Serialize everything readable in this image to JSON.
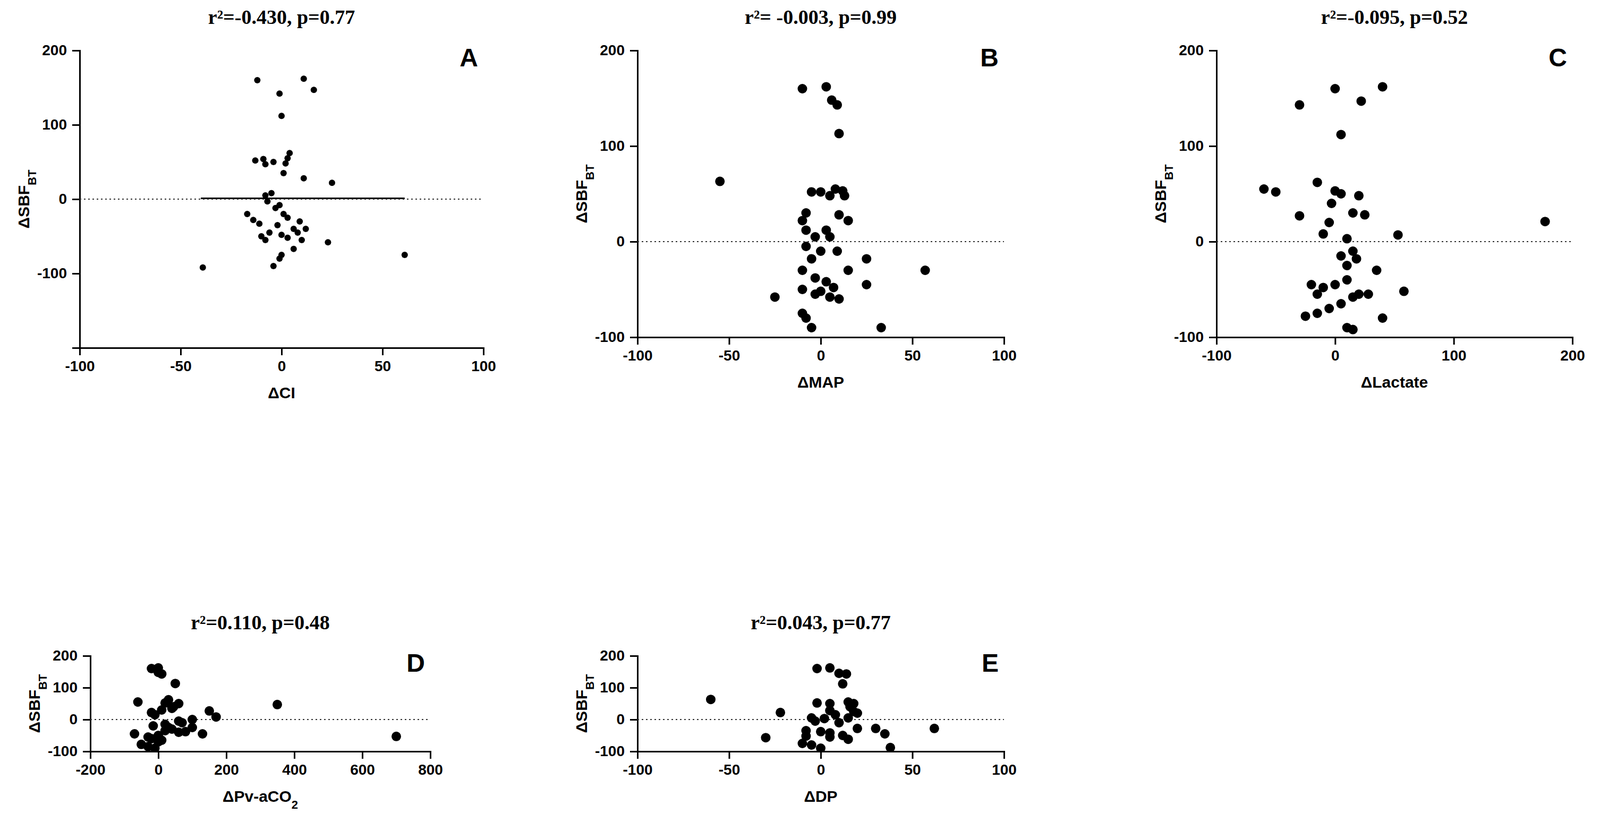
{
  "chart_data": [
    {
      "type": "scatter",
      "title": "r²=-0.430, p=0.77",
      "panel": "A",
      "xlabel": "ΔCI",
      "ylabel": "ΔSBF",
      "ylabel_sub": "BT",
      "color": "#000000",
      "marker": "circle",
      "xlim": [
        -100,
        100
      ],
      "xticks": [
        -100,
        -50,
        0,
        50,
        100
      ],
      "ylim": [
        -200,
        200
      ],
      "yticks": [
        -100,
        0,
        100,
        200
      ],
      "hline": 0,
      "fit": {
        "x": [
          -40,
          61
        ],
        "y": [
          1,
          1
        ]
      },
      "x": [
        -12,
        11,
        16,
        -1,
        0,
        -13,
        -9,
        -4,
        2,
        4,
        3,
        -8,
        1,
        11,
        25,
        -5,
        -8,
        -7,
        -1,
        -3,
        -17,
        -14,
        1,
        3,
        9,
        -2,
        6,
        -11,
        -10,
        -8,
        0,
        3,
        8,
        10,
        6,
        0,
        -1,
        -4,
        -39,
        61,
        23,
        12,
        -6
      ],
      "y": [
        160,
        162,
        147,
        142,
        112,
        52,
        54,
        50,
        48,
        62,
        55,
        47,
        35,
        28,
        22,
        8,
        5,
        -3,
        -8,
        -12,
        -20,
        -28,
        -20,
        -25,
        -30,
        -35,
        -40,
        -33,
        -50,
        -55,
        -48,
        -52,
        -45,
        -55,
        -67,
        -75,
        -80,
        -90,
        -92,
        -75,
        -58,
        -40,
        -45
      ]
    },
    {
      "type": "scatter",
      "title": "r²= -0.003, p=0.99",
      "panel": "B",
      "xlabel": "ΔMAP",
      "ylabel": "ΔSBF",
      "ylabel_sub": "BT",
      "color": "#000000",
      "marker": "circle",
      "xlim": [
        -100,
        100
      ],
      "xticks": [
        -100,
        -50,
        0,
        50,
        100
      ],
      "ylim": [
        -100,
        200
      ],
      "yticks": [
        -100,
        0,
        100,
        200
      ],
      "hline": 0,
      "x": [
        -10,
        3,
        6,
        9,
        10,
        -55,
        -5,
        0,
        8,
        12,
        13,
        5,
        -8,
        10,
        15,
        -10,
        -8,
        3,
        -3,
        5,
        -8,
        0,
        9,
        -5,
        25,
        15,
        57,
        -10,
        -3,
        3,
        7,
        -10,
        0,
        25,
        -3,
        5,
        -25,
        10,
        -10,
        -8,
        -5,
        33
      ],
      "y": [
        160,
        162,
        148,
        143,
        113,
        63,
        52,
        52,
        55,
        53,
        48,
        48,
        30,
        28,
        22,
        22,
        12,
        12,
        5,
        5,
        -5,
        -10,
        -10,
        -18,
        -18,
        -30,
        -30,
        -30,
        -38,
        -42,
        -48,
        -50,
        -52,
        -45,
        -55,
        -58,
        -58,
        -60,
        -75,
        -80,
        -90,
        -90
      ]
    },
    {
      "type": "scatter",
      "title": "r²=-0.095, p=0.52",
      "panel": "C",
      "xlabel": "ΔLactate",
      "ylabel": "ΔSBF",
      "ylabel_sub": "BT",
      "color": "#000000",
      "marker": "circle",
      "xlim": [
        -100,
        200
      ],
      "xticks": [
        -100,
        0,
        100,
        200
      ],
      "ylim": [
        -100,
        200
      ],
      "yticks": [
        -100,
        0,
        100,
        200
      ],
      "hline": 0,
      "x": [
        -30,
        0,
        22,
        40,
        5,
        -60,
        -50,
        -15,
        0,
        5,
        -3,
        -30,
        -5,
        15,
        25,
        20,
        177,
        53,
        -10,
        10,
        15,
        5,
        18,
        10,
        35,
        -20,
        -10,
        0,
        10,
        20,
        28,
        58,
        -15,
        -5,
        15,
        -25,
        -15,
        5,
        40,
        10,
        15
      ],
      "y": [
        143,
        160,
        147,
        162,
        112,
        55,
        52,
        62,
        53,
        50,
        40,
        27,
        20,
        30,
        28,
        48,
        21,
        7,
        8,
        3,
        -10,
        -15,
        -18,
        -25,
        -30,
        -45,
        -48,
        -45,
        -40,
        -55,
        -55,
        -52,
        -55,
        -70,
        -58,
        -78,
        -75,
        -65,
        -80,
        -90,
        -92
      ]
    },
    {
      "type": "scatter",
      "title": "r²=0.110, p=0.48",
      "panel": "D",
      "xlabel": "ΔPv-aCO",
      "xlabel_sub": "2",
      "ylabel": "ΔSBF",
      "ylabel_sub": "BT",
      "color": "#000000",
      "marker": "circle",
      "xlim": [
        -200,
        800
      ],
      "xticks": [
        -200,
        0,
        200,
        400,
        600,
        800
      ],
      "ylim": [
        -100,
        200
      ],
      "yticks": [
        -100,
        0,
        100,
        200
      ],
      "hline": 0,
      "x": [
        -20,
        0,
        0,
        10,
        50,
        -60,
        20,
        30,
        60,
        45,
        150,
        350,
        170,
        100,
        -20,
        -10,
        10,
        40,
        60,
        -15,
        20,
        70,
        100,
        -70,
        130,
        700,
        -30,
        0,
        20,
        40,
        60,
        80,
        -20,
        0,
        -50,
        -30,
        -10,
        10,
        30
      ],
      "y": [
        160,
        162,
        148,
        143,
        113,
        55,
        52,
        62,
        50,
        40,
        27,
        47,
        8,
        0,
        22,
        15,
        30,
        35,
        -5,
        -20,
        -15,
        -10,
        -25,
        -45,
        -45,
        -53,
        -55,
        -50,
        -35,
        -30,
        -40,
        -38,
        -60,
        -70,
        -78,
        -85,
        -90,
        -65,
        -25
      ]
    },
    {
      "type": "scatter",
      "title": "r²=0.043, p=0.77",
      "panel": "E",
      "xlabel": "ΔDP",
      "ylabel": "ΔSBF",
      "ylabel_sub": "BT",
      "color": "#000000",
      "marker": "circle",
      "xlim": [
        -100,
        100
      ],
      "xticks": [
        -100,
        -50,
        0,
        50,
        100
      ],
      "ylim": [
        -100,
        200
      ],
      "yticks": [
        -100,
        0,
        100,
        200
      ],
      "hline": 0,
      "x": [
        -2,
        5,
        10,
        14,
        12,
        -60,
        -2,
        5,
        15,
        18,
        16,
        -22,
        5,
        18,
        20,
        8,
        -5,
        2,
        15,
        -3,
        10,
        20,
        30,
        62,
        -8,
        0,
        5,
        35,
        -30,
        -8,
        12,
        15,
        -10,
        -5,
        0,
        38,
        5
      ],
      "y": [
        160,
        162,
        145,
        143,
        112,
        63,
        52,
        50,
        55,
        50,
        40,
        22,
        28,
        25,
        20,
        15,
        5,
        3,
        5,
        -5,
        -10,
        -28,
        -28,
        -28,
        -35,
        -38,
        -42,
        -45,
        -57,
        -52,
        -50,
        -62,
        -75,
        -80,
        -90,
        -88,
        -55
      ]
    }
  ]
}
